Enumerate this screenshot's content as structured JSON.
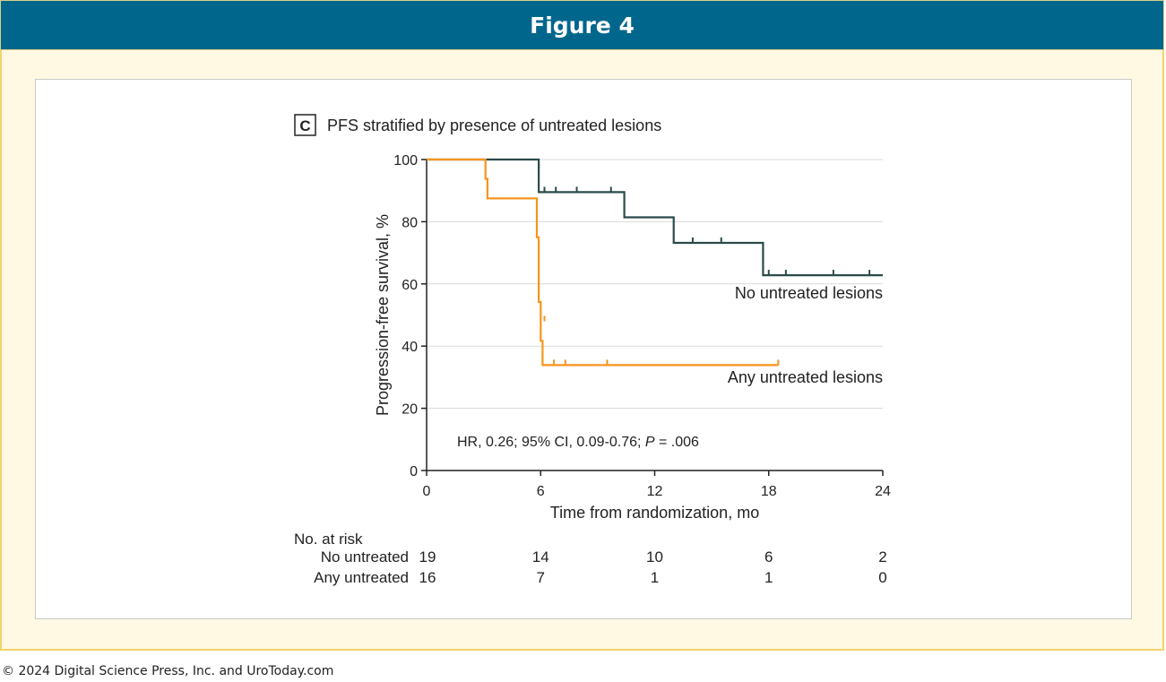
{
  "header": {
    "title": "Figure 4"
  },
  "footer": {
    "copyright": "© 2024 Digital Science Press, Inc. and UroToday.com"
  },
  "colors": {
    "header_bg": "#00668c",
    "outer_bg": "#fff9e3",
    "outer_border": "#f3d36a"
  },
  "chart_data": {
    "type": "line",
    "subtype": "kaplan-meier",
    "panel_letter": "C",
    "title": "PFS stratified by presence of untreated lesions",
    "xlabel": "Time from randomization, mo",
    "ylabel": "Progression-free survival, %",
    "xlim": [
      0,
      24
    ],
    "ylim": [
      0,
      100
    ],
    "xticks": [
      0,
      6,
      12,
      18,
      24
    ],
    "yticks": [
      0,
      20,
      40,
      60,
      80,
      100
    ],
    "grid": "horizontal",
    "series": [
      {
        "name": "No untreated lesions",
        "color": "#2b4a4a",
        "steps": [
          [
            0,
            100
          ],
          [
            5.9,
            100
          ],
          [
            5.9,
            89.5
          ],
          [
            10.4,
            89.5
          ],
          [
            10.4,
            81.4
          ],
          [
            13.0,
            81.4
          ],
          [
            13.0,
            73.2
          ],
          [
            17.7,
            73.2
          ],
          [
            17.7,
            62.8
          ],
          [
            24,
            62.8
          ]
        ],
        "censored": [
          [
            5.9,
            97
          ],
          [
            6.2,
            89.5
          ],
          [
            6.8,
            89.5
          ],
          [
            7.9,
            89.5
          ],
          [
            9.7,
            89.5
          ],
          [
            14.0,
            73.2
          ],
          [
            15.5,
            73.2
          ],
          [
            18.0,
            62.8
          ],
          [
            18.9,
            62.8
          ],
          [
            21.4,
            62.8
          ],
          [
            23.3,
            62.8
          ]
        ]
      },
      {
        "name": "Any untreated lesions",
        "color": "#f7941d",
        "steps": [
          [
            0,
            100
          ],
          [
            3.1,
            100
          ],
          [
            3.1,
            93.8
          ],
          [
            3.2,
            93.8
          ],
          [
            3.2,
            87.5
          ],
          [
            5.8,
            87.5
          ],
          [
            5.8,
            75
          ],
          [
            5.9,
            75
          ],
          [
            5.9,
            54.2
          ],
          [
            6.0,
            54.2
          ],
          [
            6.0,
            41.7
          ],
          [
            6.1,
            41.7
          ],
          [
            6.1,
            33.9
          ],
          [
            18.5,
            33.9
          ]
        ],
        "censored": [
          [
            5.8,
            80
          ],
          [
            6.2,
            48
          ],
          [
            6.7,
            33.9
          ],
          [
            7.3,
            33.9
          ],
          [
            9.5,
            33.9
          ],
          [
            18.5,
            33.9
          ]
        ]
      }
    ],
    "annotation": {
      "hr_text": "HR, 0.26; 95% CI, 0.09-0.76; ",
      "p_label": "P",
      "p_text": " = .006"
    },
    "at_risk": {
      "heading": "No. at risk",
      "times": [
        0,
        6,
        12,
        18,
        24
      ],
      "rows": [
        {
          "label": "No untreated",
          "values": [
            19,
            14,
            10,
            6,
            2
          ]
        },
        {
          "label": "Any untreated",
          "values": [
            16,
            7,
            1,
            1,
            0
          ]
        }
      ]
    }
  }
}
